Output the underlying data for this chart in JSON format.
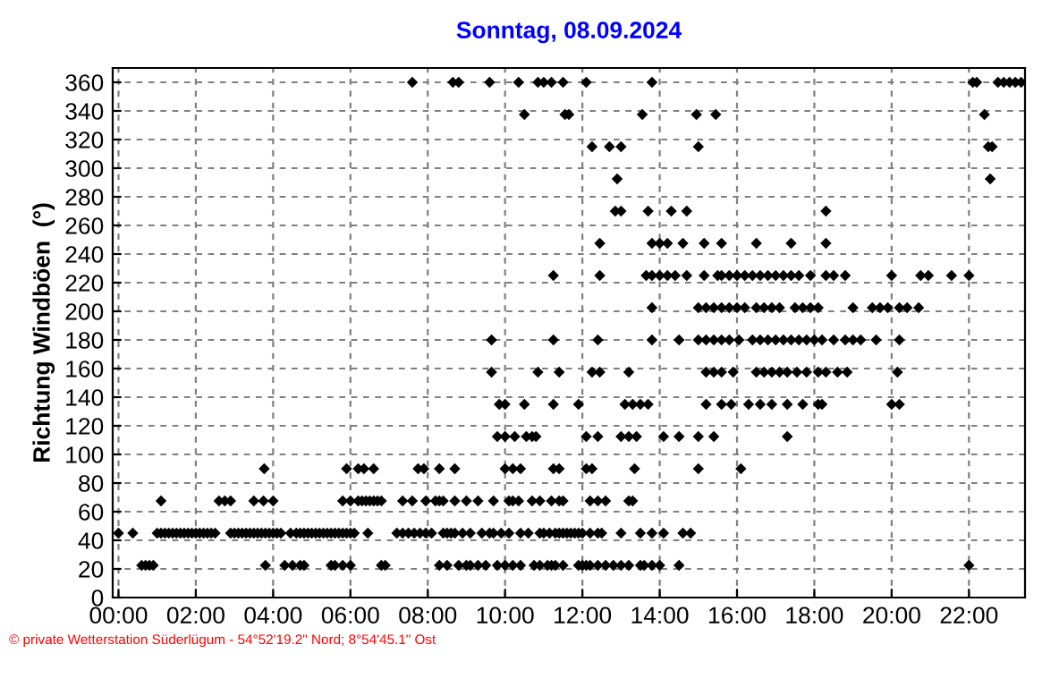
{
  "chart_data": {
    "type": "scatter",
    "title": "Sonntag, 08.09.2024",
    "ylabel": "Richtung Windböen  (°)",
    "annotations": [
      "© private Wetterstation Süderlügum - 54°52'19.2\" Nord; 8°54'45.1\" Ost"
    ],
    "xlim": [
      -0.15,
      23.45
    ],
    "ylim": [
      0,
      370
    ],
    "xticks": [
      {
        "value": 0,
        "label": "00:00"
      },
      {
        "value": 2,
        "label": "02:00"
      },
      {
        "value": 4,
        "label": "04:00"
      },
      {
        "value": 6,
        "label": "06:00"
      },
      {
        "value": 8,
        "label": "08:00"
      },
      {
        "value": 10,
        "label": "10:00"
      },
      {
        "value": 12,
        "label": "12:00"
      },
      {
        "value": 14,
        "label": "14:00"
      },
      {
        "value": 16,
        "label": "16:00"
      },
      {
        "value": 18,
        "label": "18:00"
      },
      {
        "value": 20,
        "label": "20:00"
      },
      {
        "value": 22,
        "label": "22:00"
      }
    ],
    "yticks": [
      0,
      20,
      40,
      60,
      80,
      100,
      120,
      140,
      160,
      180,
      200,
      220,
      240,
      260,
      280,
      300,
      320,
      340,
      360
    ],
    "grid": true,
    "marker": "diamond",
    "series": [
      {
        "color": "#000000",
        "x": [
          0.6,
          0.7,
          0.8,
          0.9,
          3.8,
          4.3,
          4.5,
          4.7,
          4.8,
          5.5,
          5.6,
          5.8,
          6.0,
          6.8,
          6.9,
          8.3,
          8.5,
          8.8,
          9.0,
          9.1,
          9.3,
          9.5,
          9.8,
          10.0,
          10.2,
          10.4,
          10.75,
          10.9,
          11.1,
          11.2,
          11.3,
          11.5,
          11.9,
          12.0,
          12.1,
          12.2,
          12.4,
          12.6,
          12.8,
          13.0,
          13.2,
          13.5,
          13.6,
          13.8,
          14.0,
          14.5,
          22.0
        ],
        "values": [
          22.5,
          22.5,
          22.5,
          22.5,
          22.5,
          22.5,
          22.5,
          22.5,
          22.5,
          22.5,
          22.5,
          22.5,
          22.5,
          22.5,
          22.5,
          22.5,
          22.5,
          22.5,
          22.5,
          22.5,
          22.5,
          22.5,
          22.5,
          22.5,
          22.5,
          22.5,
          22.5,
          22.5,
          22.5,
          22.5,
          22.5,
          22.5,
          22.5,
          22.5,
          22.5,
          22.5,
          22.5,
          22.5,
          22.5,
          22.5,
          22.5,
          22.5,
          22.5,
          22.5,
          22.5,
          22.5,
          22.5
        ]
      },
      {
        "color": "#000000",
        "x": [
          0.0,
          0.37,
          1.0,
          1.1,
          1.2,
          1.3,
          1.4,
          1.5,
          1.6,
          1.7,
          1.8,
          1.9,
          2.0,
          2.1,
          2.2,
          2.3,
          2.4,
          2.5,
          2.9,
          3.0,
          3.1,
          3.2,
          3.3,
          3.4,
          3.5,
          3.6,
          3.7,
          3.8,
          3.9,
          4.0,
          4.1,
          4.2,
          4.45,
          4.6,
          4.7,
          4.8,
          4.9,
          5.0,
          5.1,
          5.2,
          5.3,
          5.4,
          5.5,
          5.6,
          5.7,
          5.8,
          5.9,
          6.0,
          6.1,
          6.45,
          7.2,
          7.35,
          7.5,
          7.65,
          7.8,
          7.95,
          8.1,
          8.4,
          8.5,
          8.6,
          8.7,
          8.9,
          9.1,
          9.4,
          9.6,
          9.7,
          9.9,
          10.1,
          10.4,
          10.6,
          10.9,
          11.0,
          11.15,
          11.3,
          11.4,
          11.5,
          11.6,
          11.7,
          11.8,
          11.9,
          12.0,
          12.2,
          12.4,
          12.5,
          13.0,
          13.5,
          13.8,
          14.1,
          14.6,
          14.8
        ],
        "values": [
          45,
          45,
          45,
          45,
          45,
          45,
          45,
          45,
          45,
          45,
          45,
          45,
          45,
          45,
          45,
          45,
          45,
          45,
          45,
          45,
          45,
          45,
          45,
          45,
          45,
          45,
          45,
          45,
          45,
          45,
          45,
          45,
          45,
          45,
          45,
          45,
          45,
          45,
          45,
          45,
          45,
          45,
          45,
          45,
          45,
          45,
          45,
          45,
          45,
          45,
          45,
          45,
          45,
          45,
          45,
          45,
          45,
          45,
          45,
          45,
          45,
          45,
          45,
          45,
          45,
          45,
          45,
          45,
          45,
          45,
          45,
          45,
          45,
          45,
          45,
          45,
          45,
          45,
          45,
          45,
          45,
          45,
          45,
          45,
          45,
          45,
          45,
          45,
          45,
          45
        ]
      },
      {
        "color": "#000000",
        "x": [
          1.1,
          2.6,
          2.75,
          2.9,
          3.5,
          3.75,
          4.0,
          5.8,
          6.0,
          6.2,
          6.3,
          6.4,
          6.5,
          6.6,
          6.7,
          6.8,
          7.35,
          7.6,
          7.95,
          8.2,
          8.3,
          8.4,
          8.7,
          9.0,
          9.3,
          9.7,
          10.1,
          10.2,
          10.35,
          10.7,
          10.9,
          11.2,
          11.4,
          11.5,
          12.2,
          12.4,
          12.6,
          13.2,
          13.3
        ],
        "values": [
          67.5,
          67.5,
          67.5,
          67.5,
          67.5,
          67.5,
          67.5,
          67.5,
          67.5,
          67.5,
          67.5,
          67.5,
          67.5,
          67.5,
          67.5,
          67.5,
          67.5,
          67.5,
          67.5,
          67.5,
          67.5,
          67.5,
          67.5,
          67.5,
          67.5,
          67.5,
          67.5,
          67.5,
          67.5,
          67.5,
          67.5,
          67.5,
          67.5,
          67.5,
          67.5,
          67.5,
          67.5,
          67.5,
          67.5
        ]
      },
      {
        "color": "#000000",
        "x": [
          3.77,
          5.9,
          6.2,
          6.35,
          6.6,
          7.75,
          7.9,
          8.3,
          8.7,
          10.0,
          10.2,
          10.4,
          11.25,
          11.4,
          12.1,
          12.25,
          13.35,
          15.0,
          16.1
        ],
        "values": [
          90,
          90,
          90,
          90,
          90,
          90,
          90,
          90,
          90,
          90,
          90,
          90,
          90,
          90,
          90,
          90,
          90,
          90,
          90
        ]
      },
      {
        "color": "#000000",
        "x": [
          9.8,
          10.0,
          10.25,
          10.55,
          10.7,
          10.8,
          12.1,
          12.4,
          13.0,
          13.2,
          13.4,
          14.1,
          14.5,
          15.0,
          15.4,
          17.3
        ],
        "values": [
          112.5,
          112.5,
          112.5,
          112.5,
          112.5,
          112.5,
          112.5,
          112.5,
          112.5,
          112.5,
          112.5,
          112.5,
          112.5,
          112.5,
          112.5,
          112.5
        ]
      },
      {
        "color": "#000000",
        "x": [
          9.85,
          10.0,
          10.5,
          11.25,
          11.9,
          13.1,
          13.3,
          13.5,
          13.7,
          15.2,
          15.6,
          15.85,
          16.3,
          16.6,
          16.9,
          17.3,
          17.7,
          18.1,
          18.2,
          20.0,
          20.2
        ],
        "values": [
          135,
          135,
          135,
          135,
          135,
          135,
          135,
          135,
          135,
          135,
          135,
          135,
          135,
          135,
          135,
          135,
          135,
          135,
          135,
          135,
          135
        ]
      },
      {
        "color": "#000000",
        "x": [
          9.65,
          10.85,
          11.4,
          12.25,
          12.45,
          13.2,
          15.2,
          15.4,
          15.6,
          15.9,
          16.5,
          16.7,
          16.9,
          17.1,
          17.3,
          17.55,
          17.8,
          18.1,
          18.3,
          18.6,
          18.85,
          20.15
        ],
        "values": [
          157.5,
          157.5,
          157.5,
          157.5,
          157.5,
          157.5,
          157.5,
          157.5,
          157.5,
          157.5,
          157.5,
          157.5,
          157.5,
          157.5,
          157.5,
          157.5,
          157.5,
          157.5,
          157.5,
          157.5,
          157.5,
          157.5
        ]
      },
      {
        "color": "#000000",
        "x": [
          9.65,
          11.25,
          12.4,
          13.8,
          14.5,
          15.0,
          15.2,
          15.4,
          15.6,
          15.8,
          16.05,
          16.4,
          16.6,
          16.8,
          17.0,
          17.2,
          17.4,
          17.6,
          17.8,
          18.0,
          18.2,
          18.5,
          18.8,
          19.0,
          19.2,
          19.6,
          20.2
        ],
        "values": [
          180,
          180,
          180,
          180,
          180,
          180,
          180,
          180,
          180,
          180,
          180,
          180,
          180,
          180,
          180,
          180,
          180,
          180,
          180,
          180,
          180,
          180,
          180,
          180,
          180,
          180,
          180
        ]
      },
      {
        "color": "#000000",
        "x": [
          13.8,
          15.0,
          15.2,
          15.4,
          15.6,
          15.8,
          16.0,
          16.2,
          16.5,
          16.7,
          16.9,
          17.1,
          17.5,
          17.7,
          17.9,
          18.1,
          19.0,
          19.5,
          19.7,
          19.9,
          20.2,
          20.4,
          20.7
        ],
        "values": [
          202.5,
          202.5,
          202.5,
          202.5,
          202.5,
          202.5,
          202.5,
          202.5,
          202.5,
          202.5,
          202.5,
          202.5,
          202.5,
          202.5,
          202.5,
          202.5,
          202.5,
          202.5,
          202.5,
          202.5,
          202.5,
          202.5,
          202.5
        ]
      },
      {
        "color": "#000000",
        "x": [
          11.25,
          12.45,
          13.65,
          13.8,
          14.0,
          14.2,
          14.4,
          14.7,
          15.15,
          15.5,
          15.6,
          15.8,
          16.0,
          16.2,
          16.4,
          16.6,
          16.8,
          17.0,
          17.2,
          17.4,
          17.6,
          17.9,
          18.3,
          18.5,
          18.8,
          20.0,
          20.75,
          20.95,
          21.55,
          22.0
        ],
        "values": [
          225,
          225,
          225,
          225,
          225,
          225,
          225,
          225,
          225,
          225,
          225,
          225,
          225,
          225,
          225,
          225,
          225,
          225,
          225,
          225,
          225,
          225,
          225,
          225,
          225,
          225,
          225,
          225,
          225,
          225
        ]
      },
      {
        "color": "#000000",
        "x": [
          12.45,
          13.8,
          14.0,
          14.2,
          14.6,
          15.15,
          15.6,
          16.5,
          17.4,
          18.3
        ],
        "values": [
          247.5,
          247.5,
          247.5,
          247.5,
          247.5,
          247.5,
          247.5,
          247.5,
          247.5,
          247.5
        ]
      },
      {
        "color": "#000000",
        "x": [
          12.85,
          13.0,
          13.7,
          14.3,
          14.7,
          18.3
        ],
        "values": [
          270,
          270,
          270,
          270,
          270,
          270
        ]
      },
      {
        "color": "#000000",
        "x": [
          12.9,
          22.55
        ],
        "values": [
          292.5,
          292.5
        ]
      },
      {
        "color": "#000000",
        "x": [
          12.25,
          12.7,
          13.0,
          15.0,
          22.5,
          22.6
        ],
        "values": [
          315,
          315,
          315,
          315,
          315,
          315
        ]
      },
      {
        "color": "#000000",
        "x": [
          10.5,
          11.55,
          11.65,
          13.55,
          14.95,
          15.45,
          22.4
        ],
        "values": [
          337.5,
          337.5,
          337.5,
          337.5,
          337.5,
          337.5,
          337.5
        ]
      },
      {
        "color": "#000000",
        "x": [
          7.6,
          8.65,
          8.8,
          9.6,
          10.35,
          10.85,
          11.0,
          11.2,
          11.5,
          12.1,
          13.8,
          22.1,
          22.2,
          22.75,
          22.9,
          23.05,
          23.2,
          23.35
        ],
        "values": [
          360,
          360,
          360,
          360,
          360,
          360,
          360,
          360,
          360,
          360,
          360,
          360,
          360,
          360,
          360,
          360,
          360,
          360
        ]
      }
    ]
  }
}
